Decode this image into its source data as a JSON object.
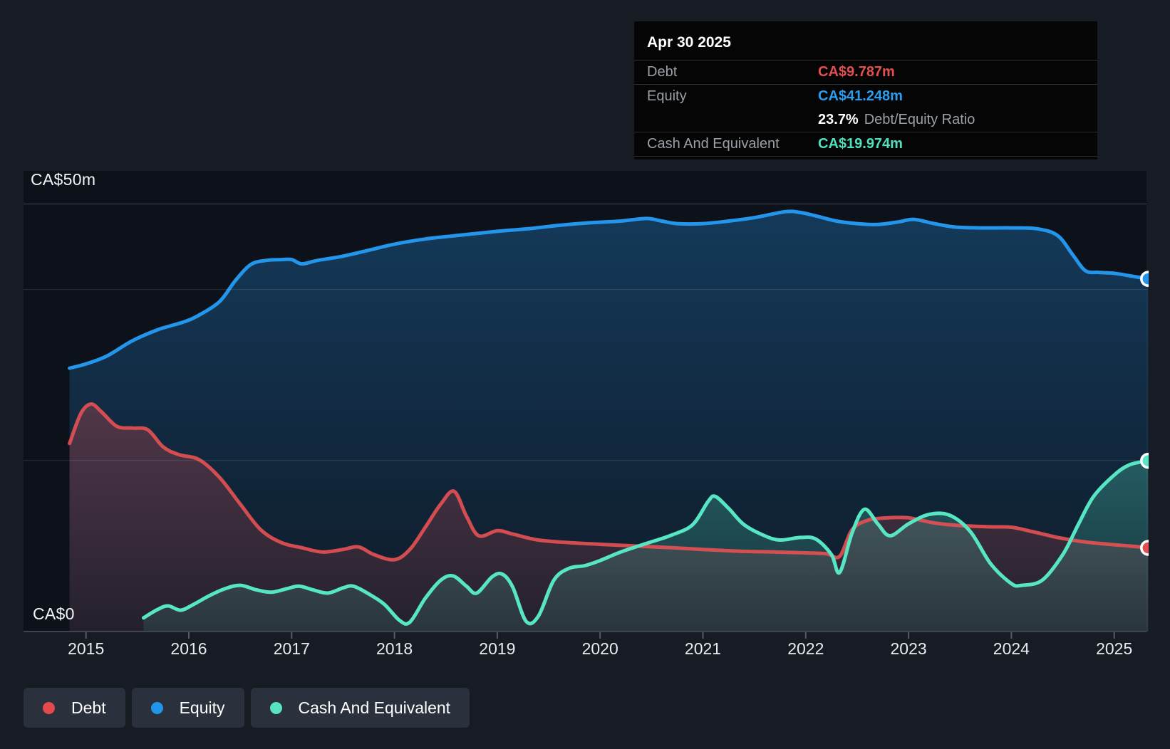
{
  "tooltip": {
    "date": "Apr 30 2025",
    "debt_label": "Debt",
    "debt_value": "CA$9.787m",
    "equity_label": "Equity",
    "equity_value": "CA$41.248m",
    "ratio_value": "23.7%",
    "ratio_label": "Debt/Equity Ratio",
    "cash_label": "Cash And Equivalent",
    "cash_value": "CA$19.974m"
  },
  "y_axis": {
    "top_label": "CA$50m",
    "bottom_label": "CA$0"
  },
  "x_axis": {
    "years": [
      "2015",
      "2016",
      "2017",
      "2018",
      "2019",
      "2020",
      "2021",
      "2022",
      "2023",
      "2024",
      "2025"
    ]
  },
  "legend": [
    {
      "label": "Debt",
      "color": "#e4494d"
    },
    {
      "label": "Equity",
      "color": "#2196e8"
    },
    {
      "label": "Cash And Equivalent",
      "color": "#57e3c0"
    }
  ],
  "colors": {
    "page_bg": "#161b24",
    "plot_bg": "#0d1119",
    "grid_strong": "rgba(173,196,222,0.30)",
    "grid_faint": "rgba(173,196,222,0.16)",
    "axis_line": "#3f444d",
    "tick": "#565b64",
    "debt_line": "#e25052",
    "equity_line": "#2395ea",
    "cash_line": "#57e6c3"
  },
  "chart_data": {
    "type": "area",
    "title": "Debt to Equity history with Cash And Equivalent",
    "unit": "CA$ millions",
    "ylim": [
      0,
      50
    ],
    "gridline_values": [
      50,
      40,
      20
    ],
    "x_tick_years": [
      2015,
      2016,
      2017,
      2018,
      2019,
      2020,
      2021,
      2022,
      2023,
      2024,
      2025
    ],
    "x_range": [
      2014.84,
      2025.33
    ],
    "hover_point": {
      "date": "Apr 30 2025",
      "debt": 9.787,
      "equity": 41.248,
      "cash": 19.974,
      "debt_equity_ratio_pct": 23.7
    },
    "legend_position": "bottom-left",
    "series": [
      {
        "name": "Equity",
        "points": [
          [
            2014.84,
            30.8
          ],
          [
            2015.0,
            31.3
          ],
          [
            2015.2,
            32.2
          ],
          [
            2015.45,
            34.0
          ],
          [
            2015.7,
            35.3
          ],
          [
            2015.95,
            36.2
          ],
          [
            2016.1,
            37.0
          ],
          [
            2016.3,
            38.6
          ],
          [
            2016.45,
            41.0
          ],
          [
            2016.6,
            42.9
          ],
          [
            2016.75,
            43.4
          ],
          [
            2016.9,
            43.5
          ],
          [
            2017.0,
            43.5
          ],
          [
            2017.1,
            43.0
          ],
          [
            2017.25,
            43.4
          ],
          [
            2017.5,
            43.9
          ],
          [
            2017.75,
            44.6
          ],
          [
            2018.0,
            45.3
          ],
          [
            2018.3,
            45.9
          ],
          [
            2018.6,
            46.3
          ],
          [
            2019.0,
            46.8
          ],
          [
            2019.3,
            47.1
          ],
          [
            2019.6,
            47.5
          ],
          [
            2019.9,
            47.8
          ],
          [
            2020.2,
            48.0
          ],
          [
            2020.45,
            48.3
          ],
          [
            2020.6,
            48.0
          ],
          [
            2020.75,
            47.7
          ],
          [
            2021.0,
            47.7
          ],
          [
            2021.25,
            48.0
          ],
          [
            2021.5,
            48.4
          ],
          [
            2021.8,
            49.1
          ],
          [
            2021.95,
            49.0
          ],
          [
            2022.1,
            48.6
          ],
          [
            2022.3,
            48.0
          ],
          [
            2022.5,
            47.7
          ],
          [
            2022.7,
            47.6
          ],
          [
            2022.9,
            47.9
          ],
          [
            2023.05,
            48.2
          ],
          [
            2023.25,
            47.7
          ],
          [
            2023.45,
            47.3
          ],
          [
            2023.7,
            47.2
          ],
          [
            2024.0,
            47.2
          ],
          [
            2024.25,
            47.1
          ],
          [
            2024.45,
            46.3
          ],
          [
            2024.6,
            44.0
          ],
          [
            2024.72,
            42.2
          ],
          [
            2024.85,
            42.0
          ],
          [
            2025.0,
            41.9
          ],
          [
            2025.15,
            41.6
          ],
          [
            2025.33,
            41.248
          ]
        ]
      },
      {
        "name": "Debt",
        "points": [
          [
            2014.84,
            22.0
          ],
          [
            2014.95,
            25.5
          ],
          [
            2015.05,
            26.6
          ],
          [
            2015.15,
            25.7
          ],
          [
            2015.3,
            24.0
          ],
          [
            2015.45,
            23.8
          ],
          [
            2015.6,
            23.6
          ],
          [
            2015.75,
            21.6
          ],
          [
            2015.9,
            20.7
          ],
          [
            2016.1,
            20.1
          ],
          [
            2016.3,
            18.0
          ],
          [
            2016.5,
            14.9
          ],
          [
            2016.7,
            11.9
          ],
          [
            2016.9,
            10.4
          ],
          [
            2017.1,
            9.8
          ],
          [
            2017.3,
            9.3
          ],
          [
            2017.5,
            9.6
          ],
          [
            2017.65,
            9.9
          ],
          [
            2017.8,
            9.0
          ],
          [
            2018.0,
            8.4
          ],
          [
            2018.15,
            9.6
          ],
          [
            2018.3,
            12.2
          ],
          [
            2018.45,
            14.9
          ],
          [
            2018.58,
            16.4
          ],
          [
            2018.7,
            13.5
          ],
          [
            2018.82,
            11.2
          ],
          [
            2019.0,
            11.8
          ],
          [
            2019.15,
            11.4
          ],
          [
            2019.4,
            10.7
          ],
          [
            2019.7,
            10.4
          ],
          [
            2020.0,
            10.2
          ],
          [
            2020.35,
            10.0
          ],
          [
            2020.7,
            9.8
          ],
          [
            2021.0,
            9.6
          ],
          [
            2021.35,
            9.4
          ],
          [
            2021.7,
            9.3
          ],
          [
            2022.0,
            9.2
          ],
          [
            2022.2,
            9.1
          ],
          [
            2022.33,
            8.8
          ],
          [
            2022.45,
            11.9
          ],
          [
            2022.6,
            13.0
          ],
          [
            2022.8,
            13.3
          ],
          [
            2023.0,
            13.3
          ],
          [
            2023.25,
            12.7
          ],
          [
            2023.5,
            12.4
          ],
          [
            2023.8,
            12.25
          ],
          [
            2024.0,
            12.2
          ],
          [
            2024.2,
            11.7
          ],
          [
            2024.45,
            11.0
          ],
          [
            2024.7,
            10.5
          ],
          [
            2024.95,
            10.2
          ],
          [
            2025.15,
            10.0
          ],
          [
            2025.33,
            9.787
          ]
        ]
      },
      {
        "name": "Cash And Equivalent",
        "points": [
          [
            2015.56,
            1.6
          ],
          [
            2015.7,
            2.6
          ],
          [
            2015.8,
            3.0
          ],
          [
            2015.92,
            2.5
          ],
          [
            2016.05,
            3.2
          ],
          [
            2016.2,
            4.2
          ],
          [
            2016.35,
            5.0
          ],
          [
            2016.5,
            5.4
          ],
          [
            2016.65,
            4.9
          ],
          [
            2016.8,
            4.6
          ],
          [
            2016.95,
            5.0
          ],
          [
            2017.07,
            5.3
          ],
          [
            2017.2,
            4.9
          ],
          [
            2017.35,
            4.5
          ],
          [
            2017.5,
            5.1
          ],
          [
            2017.6,
            5.3
          ],
          [
            2017.75,
            4.4
          ],
          [
            2017.9,
            3.2
          ],
          [
            2018.05,
            1.3
          ],
          [
            2018.15,
            1.1
          ],
          [
            2018.3,
            3.9
          ],
          [
            2018.45,
            6.0
          ],
          [
            2018.57,
            6.5
          ],
          [
            2018.7,
            5.3
          ],
          [
            2018.8,
            4.5
          ],
          [
            2018.95,
            6.4
          ],
          [
            2019.05,
            6.7
          ],
          [
            2019.15,
            5.2
          ],
          [
            2019.28,
            1.2
          ],
          [
            2019.4,
            1.8
          ],
          [
            2019.55,
            6.0
          ],
          [
            2019.7,
            7.4
          ],
          [
            2019.85,
            7.7
          ],
          [
            2020.0,
            8.3
          ],
          [
            2020.2,
            9.3
          ],
          [
            2020.45,
            10.3
          ],
          [
            2020.7,
            11.3
          ],
          [
            2020.9,
            12.5
          ],
          [
            2021.05,
            15.2
          ],
          [
            2021.12,
            15.8
          ],
          [
            2021.25,
            14.4
          ],
          [
            2021.4,
            12.5
          ],
          [
            2021.6,
            11.2
          ],
          [
            2021.75,
            10.7
          ],
          [
            2021.95,
            11.0
          ],
          [
            2022.1,
            10.8
          ],
          [
            2022.25,
            9.0
          ],
          [
            2022.33,
            6.9
          ],
          [
            2022.45,
            11.5
          ],
          [
            2022.57,
            14.3
          ],
          [
            2022.7,
            12.6
          ],
          [
            2022.82,
            11.2
          ],
          [
            2023.0,
            12.6
          ],
          [
            2023.2,
            13.7
          ],
          [
            2023.4,
            13.6
          ],
          [
            2023.6,
            11.7
          ],
          [
            2023.8,
            7.9
          ],
          [
            2024.0,
            5.6
          ],
          [
            2024.1,
            5.4
          ],
          [
            2024.3,
            6.0
          ],
          [
            2024.5,
            9.0
          ],
          [
            2024.65,
            12.5
          ],
          [
            2024.8,
            15.8
          ],
          [
            2025.0,
            18.3
          ],
          [
            2025.15,
            19.5
          ],
          [
            2025.33,
            19.974
          ]
        ]
      }
    ]
  }
}
